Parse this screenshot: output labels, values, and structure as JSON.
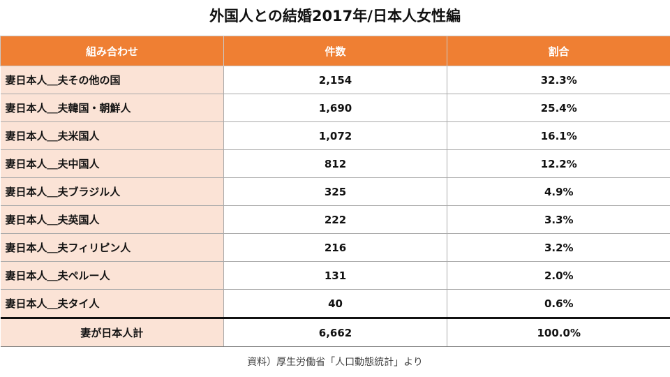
{
  "title": "外国人との結婚2017年/日本人女性編",
  "colors": {
    "header_bg": "#ef7f33",
    "label_bg": "#fbe3d6"
  },
  "source": "資料）厚生労働省「人口動態統計」より",
  "chart_data": {
    "type": "table",
    "title": "外国人との結婚2017年/日本人女性編",
    "columns": [
      "組み合わせ",
      "件数",
      "割合"
    ],
    "rows": [
      {
        "combo": "妻日本人＿夫その他の国",
        "count": "2,154",
        "pct": "32.3%"
      },
      {
        "combo": "妻日本人＿夫韓国・朝鮮人",
        "count": "1,690",
        "pct": "25.4%"
      },
      {
        "combo": "妻日本人＿夫米国人",
        "count": "1,072",
        "pct": "16.1%"
      },
      {
        "combo": "妻日本人＿夫中国人",
        "count": "812",
        "pct": "12.2%"
      },
      {
        "combo": "妻日本人＿夫ブラジル人",
        "count": "325",
        "pct": "4.9%"
      },
      {
        "combo": "妻日本人＿夫英国人",
        "count": "222",
        "pct": "3.3%"
      },
      {
        "combo": "妻日本人＿夫フィリピン人",
        "count": "216",
        "pct": "3.2%"
      },
      {
        "combo": "妻日本人＿夫ペルー人",
        "count": "131",
        "pct": "2.0%"
      },
      {
        "combo": "妻日本人＿夫タイ人",
        "count": "40",
        "pct": "0.6%"
      }
    ],
    "total": {
      "combo": "妻が日本人計",
      "count": "6,662",
      "pct": "100.0%"
    }
  }
}
